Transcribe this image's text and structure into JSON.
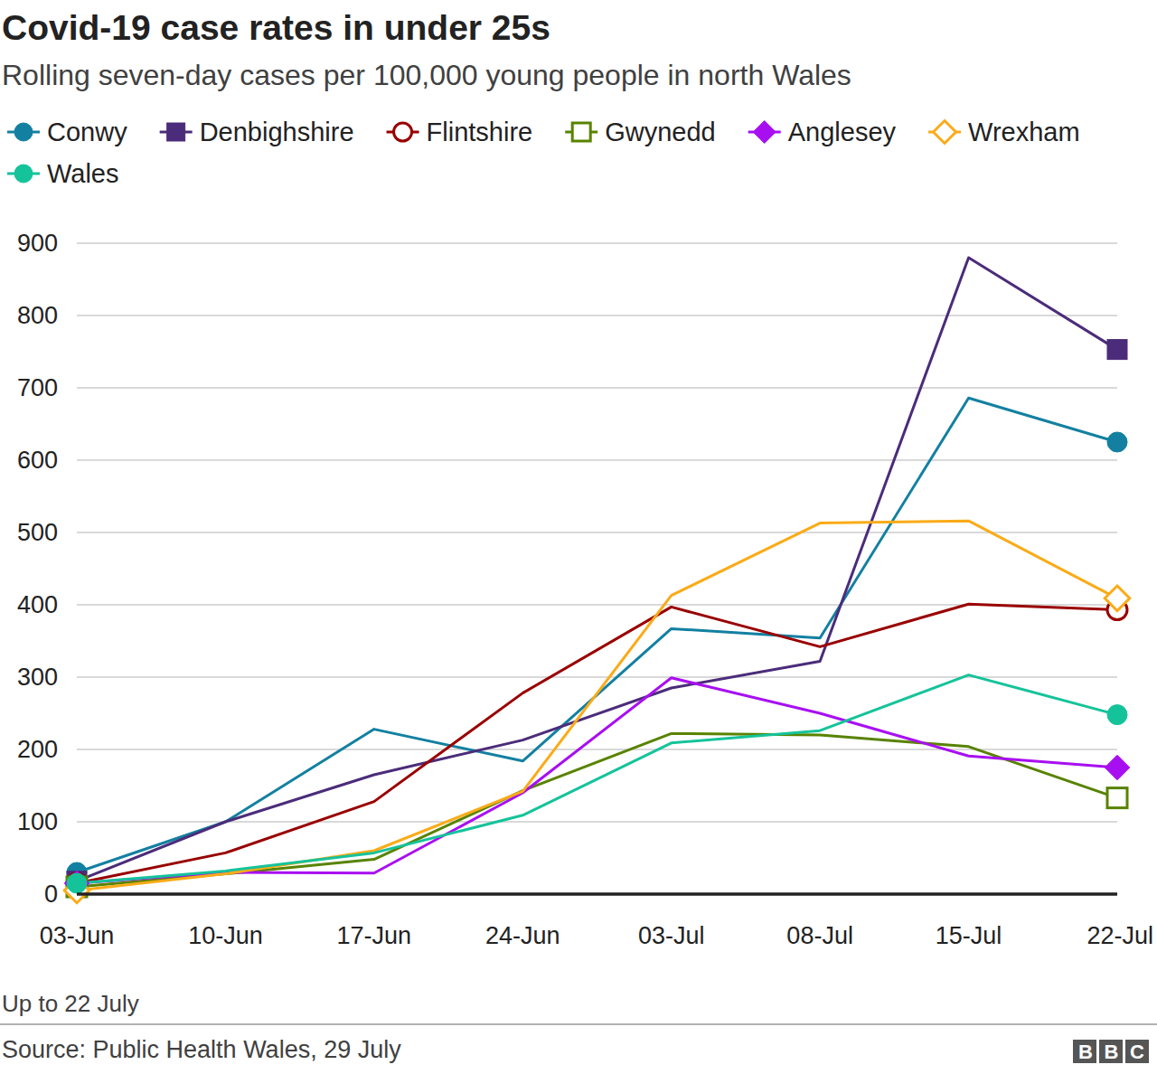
{
  "chart_data": {
    "type": "line",
    "title": "Covid-19 case rates in under 25s",
    "subtitle": "Rolling seven-day cases per 100,000 young people in north Wales",
    "note": "Up to 22 July",
    "source": "Source: Public Health Wales, 29 July",
    "logo": "BBC",
    "categories": [
      "03-Jun",
      "10-Jun",
      "17-Jun",
      "24-Jun",
      "03-Jul",
      "08-Jul",
      "15-Jul",
      "22-Jul"
    ],
    "ylim": [
      0,
      900
    ],
    "yticks": [
      0,
      100,
      200,
      300,
      400,
      500,
      600,
      700,
      800,
      900
    ],
    "grid": true,
    "legend": "top",
    "series": [
      {
        "name": "Conwy",
        "color": "#1380a1",
        "marker": "circle",
        "values": [
          30,
          100,
          228,
          184,
          367,
          354,
          686,
          625
        ]
      },
      {
        "name": "Denbighshire",
        "color": "#4b2c7a",
        "marker": "square",
        "values": [
          18,
          100,
          165,
          213,
          285,
          322,
          880,
          753
        ]
      },
      {
        "name": "Flintshire",
        "color": "#990000",
        "marker": "open-circle",
        "values": [
          15,
          57,
          128,
          278,
          397,
          342,
          401,
          393
        ]
      },
      {
        "name": "Gwynedd",
        "color": "#588300",
        "marker": "open-square",
        "values": [
          10,
          28,
          48,
          143,
          222,
          220,
          204,
          133
        ]
      },
      {
        "name": "Anglesey",
        "color": "#a80ff0",
        "marker": "diamond",
        "values": [
          15,
          30,
          29,
          140,
          299,
          250,
          191,
          175
        ]
      },
      {
        "name": "Wrexham",
        "color": "#faab18",
        "marker": "open-diamond",
        "values": [
          5,
          28,
          60,
          142,
          413,
          513,
          516,
          409
        ]
      },
      {
        "name": "Wales",
        "color": "#15c39a",
        "marker": "circle",
        "values": [
          15,
          32,
          57,
          109,
          209,
          226,
          303,
          248
        ]
      }
    ]
  }
}
